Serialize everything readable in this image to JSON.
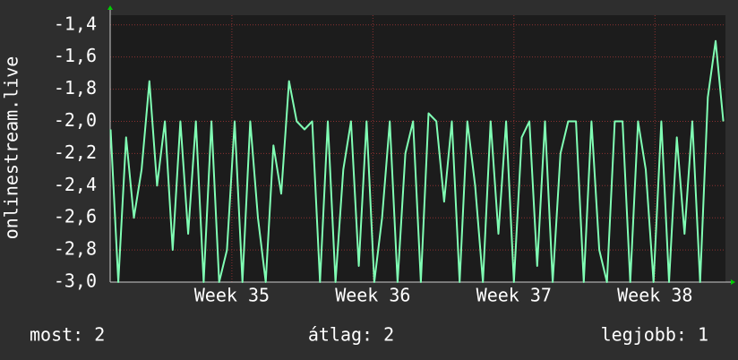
{
  "chart_data": {
    "type": "line",
    "ylabel": "onlinestream.live",
    "color": "#80ffb4",
    "x": [
      34.14,
      34.195,
      34.25,
      34.305,
      34.36,
      34.415,
      34.47,
      34.525,
      34.58,
      34.635,
      34.69,
      34.745,
      34.8,
      34.855,
      34.91,
      34.965,
      35.02,
      35.075,
      35.13,
      35.185,
      35.24,
      35.295,
      35.35,
      35.405,
      35.46,
      35.515,
      35.57,
      35.625,
      35.68,
      35.735,
      35.79,
      35.845,
      35.9,
      35.955,
      36.01,
      36.065,
      36.12,
      36.175,
      36.23,
      36.285,
      36.34,
      36.395,
      36.45,
      36.505,
      36.56,
      36.615,
      36.67,
      36.725,
      36.78,
      36.835,
      36.89,
      36.945,
      37,
      37.055,
      37.11,
      37.165,
      37.22,
      37.275,
      37.33,
      37.385,
      37.44,
      37.495,
      37.55,
      37.605,
      37.66,
      37.715,
      37.77,
      37.825,
      37.88,
      37.935,
      37.99,
      38.045,
      38.1,
      38.155,
      38.21,
      38.265,
      38.32,
      38.375,
      38.43,
      38.485
    ],
    "values": [
      -2.05,
      -3.0,
      -2.1,
      -2.6,
      -2.3,
      -1.75,
      -2.4,
      -2.0,
      -2.8,
      -2.0,
      -2.7,
      -2.0,
      -3.0,
      -2.0,
      -3.0,
      -2.8,
      -2.0,
      -3.0,
      -2.0,
      -2.6,
      -3.0,
      -2.15,
      -2.45,
      -1.75,
      -2.0,
      -2.05,
      -2.0,
      -3.0,
      -2.0,
      -3.0,
      -2.3,
      -2.0,
      -2.9,
      -2.0,
      -3.0,
      -2.6,
      -2.0,
      -3.0,
      -2.2,
      -2.0,
      -3.0,
      -1.95,
      -2.0,
      -2.5,
      -2.0,
      -3.0,
      -2.0,
      -2.4,
      -3.0,
      -2.0,
      -2.7,
      -2.0,
      -3.0,
      -2.1,
      -2.0,
      -2.9,
      -2.0,
      -3.0,
      -2.2,
      -2.0,
      -2.0,
      -3.0,
      -2.0,
      -2.8,
      -3.0,
      -2.0,
      -2.0,
      -3.0,
      -2.0,
      -2.3,
      -3.0,
      -2.0,
      -3.0,
      -2.1,
      -2.7,
      -2.0,
      -3.0,
      -1.85,
      -1.5,
      -2.0
    ],
    "xlim": [
      34.137,
      38.5
    ],
    "xticks": [
      {
        "value": 35,
        "label": "Week 35"
      },
      {
        "value": 36,
        "label": "Week 36"
      },
      {
        "value": 37,
        "label": "Week 37"
      },
      {
        "value": 38,
        "label": "Week 38"
      }
    ],
    "ylim": [
      -3.0,
      -1.34
    ],
    "yticks": [
      {
        "value": -3.0,
        "label": "-3,0"
      },
      {
        "value": -2.8,
        "label": "-2,8"
      },
      {
        "value": -2.6,
        "label": "-2,6"
      },
      {
        "value": -2.4,
        "label": "-2,4"
      },
      {
        "value": -2.2,
        "label": "-2,2"
      },
      {
        "value": -2.0,
        "label": "-2,0"
      },
      {
        "value": -1.8,
        "label": "-1,8"
      },
      {
        "value": -1.6,
        "label": "-1,6"
      },
      {
        "value": -1.4,
        "label": "-1,4"
      }
    ],
    "grid": true,
    "stats": [
      "most: 2",
      "átlag: 2",
      "legjobb: 1"
    ]
  }
}
